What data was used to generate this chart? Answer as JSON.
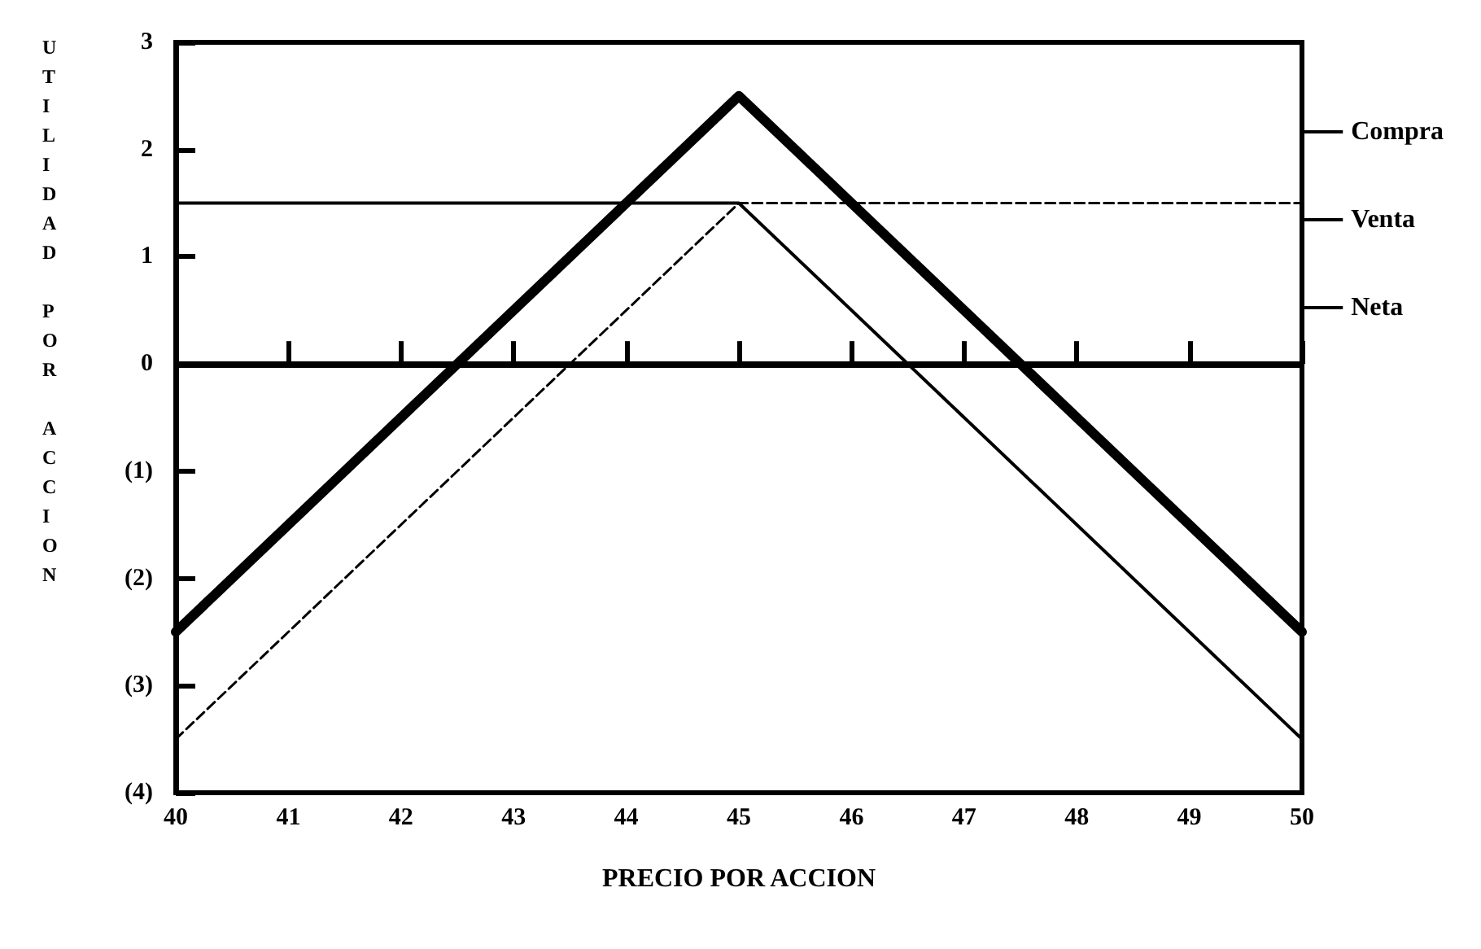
{
  "chart_data": {
    "type": "line",
    "xlabel": "PRECIO POR ACCION",
    "ylabel": "UTILIDAD POR ACCION",
    "x": [
      40,
      45,
      50
    ],
    "series": [
      {
        "name": "Compra",
        "color": "#000000",
        "line_style": "solid",
        "values": [
          1.5,
          1.5,
          -3.5
        ]
      },
      {
        "name": "Venta",
        "color": "#000000",
        "line_style": "dashed",
        "values": [
          -3.5,
          1.5,
          1.5
        ]
      },
      {
        "name": "Neta",
        "color": "#000000",
        "line_style": "solid",
        "values": [
          -2.5,
          2.5,
          -2.5
        ]
      }
    ],
    "xlim": [
      40,
      50
    ],
    "xticks": [
      40,
      41,
      42,
      43,
      44,
      45,
      46,
      47,
      48,
      49,
      50
    ],
    "ylim": [
      -4,
      3
    ],
    "yticks": [
      {
        "value": -4,
        "label": "(4)"
      },
      {
        "value": -3,
        "label": "(3)"
      },
      {
        "value": -2,
        "label": "(2)"
      },
      {
        "value": -1,
        "label": "(1)"
      },
      0,
      1,
      2,
      3
    ],
    "ref_lines": [
      {
        "axis": "y",
        "value": 0,
        "color": "#000000"
      }
    ],
    "grid": false,
    "legend": "right",
    "marker": "none"
  }
}
